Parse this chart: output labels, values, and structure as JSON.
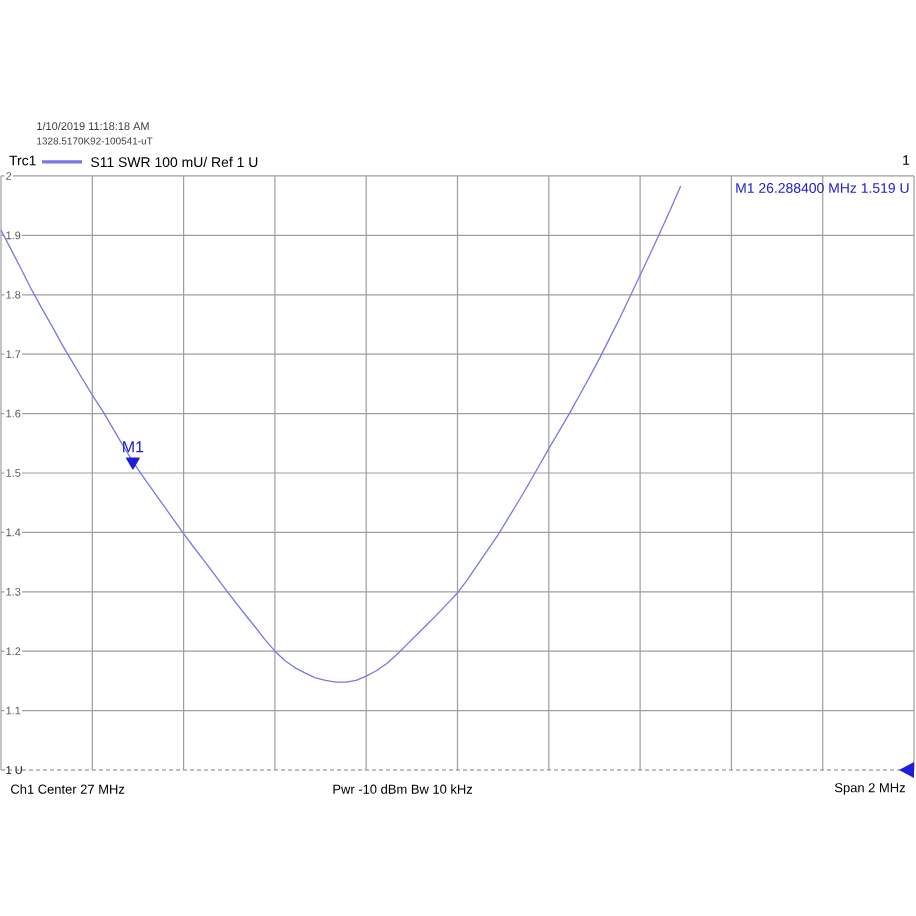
{
  "chart_data": {
    "type": "line",
    "annotations": [
      "1/10/2019 11:18:18 AM",
      "1328.5170K92-100541-uT",
      "S11 SWR 100 mU/ Ref 1 U",
      "1",
      {
        "text": "M1",
        "y": 1.519
      },
      "M1 26.288400 MHz 1.519 U",
      "Ch1 Center 27 MHz",
      "Pwr -10 dBm Bw 10 kHz",
      "Span 2 MHz"
    ],
    "categories": [
      null,
      null,
      null,
      null,
      null,
      null,
      null,
      null,
      null,
      null,
      null,
      null,
      null,
      null,
      null,
      null,
      null,
      null,
      null,
      null,
      null,
      null,
      null,
      null,
      null,
      null,
      null,
      null,
      null,
      null,
      null,
      null,
      null,
      null,
      null,
      null,
      null,
      null,
      null,
      null,
      null,
      null,
      null,
      null,
      null,
      null,
      null,
      null,
      null,
      null,
      null,
      null,
      null,
      null,
      null,
      null,
      null,
      null,
      null,
      null,
      null,
      null,
      null,
      null,
      null,
      null,
      null,
      null,
      null,
      null,
      null,
      null,
      null,
      null,
      null,
      null,
      null,
      null,
      null,
      null,
      null,
      null,
      null,
      null,
      null,
      null,
      null,
      null,
      null,
      null,
      null
    ],
    "ylim": [
      1,
      2
    ],
    "yticks": [
      {
        "value": 1,
        "label": "1 U"
      },
      1.1,
      1.2,
      1.3,
      1.4,
      1.5,
      1.6,
      1.7,
      1.8,
      1.9,
      2
    ],
    "series": [
      {
        "name": "Trc1",
        "color": "#7878e6",
        "values": [
          1.909,
          1.876,
          1.843,
          1.809,
          1.778,
          1.748,
          1.717,
          1.688,
          1.659,
          1.631,
          1.605,
          1.576,
          1.547,
          1.519,
          1.494,
          1.47,
          1.446,
          1.422,
          1.398,
          1.375,
          1.353,
          1.33,
          1.307,
          1.285,
          1.263,
          1.242,
          1.22,
          1.2,
          1.184,
          1.172,
          1.163,
          1.155,
          1.151,
          1.148,
          1.148,
          1.151,
          1.158,
          1.167,
          1.179,
          1.194,
          1.211,
          1.228,
          1.245,
          1.262,
          1.28,
          1.298,
          1.321,
          1.346,
          1.371,
          1.396,
          1.424,
          1.452,
          1.481,
          1.511,
          1.541,
          1.57,
          1.599,
          1.63,
          1.661,
          1.693,
          1.727,
          1.761,
          1.797,
          1.833,
          1.869,
          1.906,
          1.944,
          1.983,
          null,
          null,
          null,
          null,
          null,
          null,
          null,
          null,
          null,
          null,
          null,
          null,
          null,
          null,
          null,
          null,
          null,
          null,
          null,
          null,
          null,
          null,
          null
        ]
      },
      {
        "type": "scatter",
        "color": "#1e1ed8",
        "marker": "triangle",
        "values": [
          null,
          null,
          null,
          null,
          null,
          null,
          null,
          null,
          null,
          null,
          null,
          null,
          null,
          1.519,
          null,
          null,
          null,
          null,
          null,
          null,
          null,
          null,
          null,
          null,
          null,
          null,
          null,
          null,
          null,
          null,
          null,
          null,
          null,
          null,
          null,
          null,
          null,
          null,
          null,
          null,
          null,
          null,
          null,
          null,
          null,
          null,
          null,
          null,
          null,
          null,
          null,
          null,
          null,
          null,
          null,
          null,
          null,
          null,
          null,
          null,
          null,
          null,
          null,
          null,
          null,
          null,
          null,
          null,
          null,
          null,
          null,
          null,
          null,
          null,
          null,
          null,
          null,
          null,
          null,
          null,
          null,
          null,
          null,
          null,
          null,
          null,
          null,
          null,
          null,
          null,
          null
        ]
      }
    ],
    "grid": true,
    "legend": "top left",
    "tick_labels": "y",
    "ref_lines": [
      {
        "axis": "y",
        "value": 1,
        "color": "#808080",
        "line_style": "dashed"
      }
    ]
  }
}
